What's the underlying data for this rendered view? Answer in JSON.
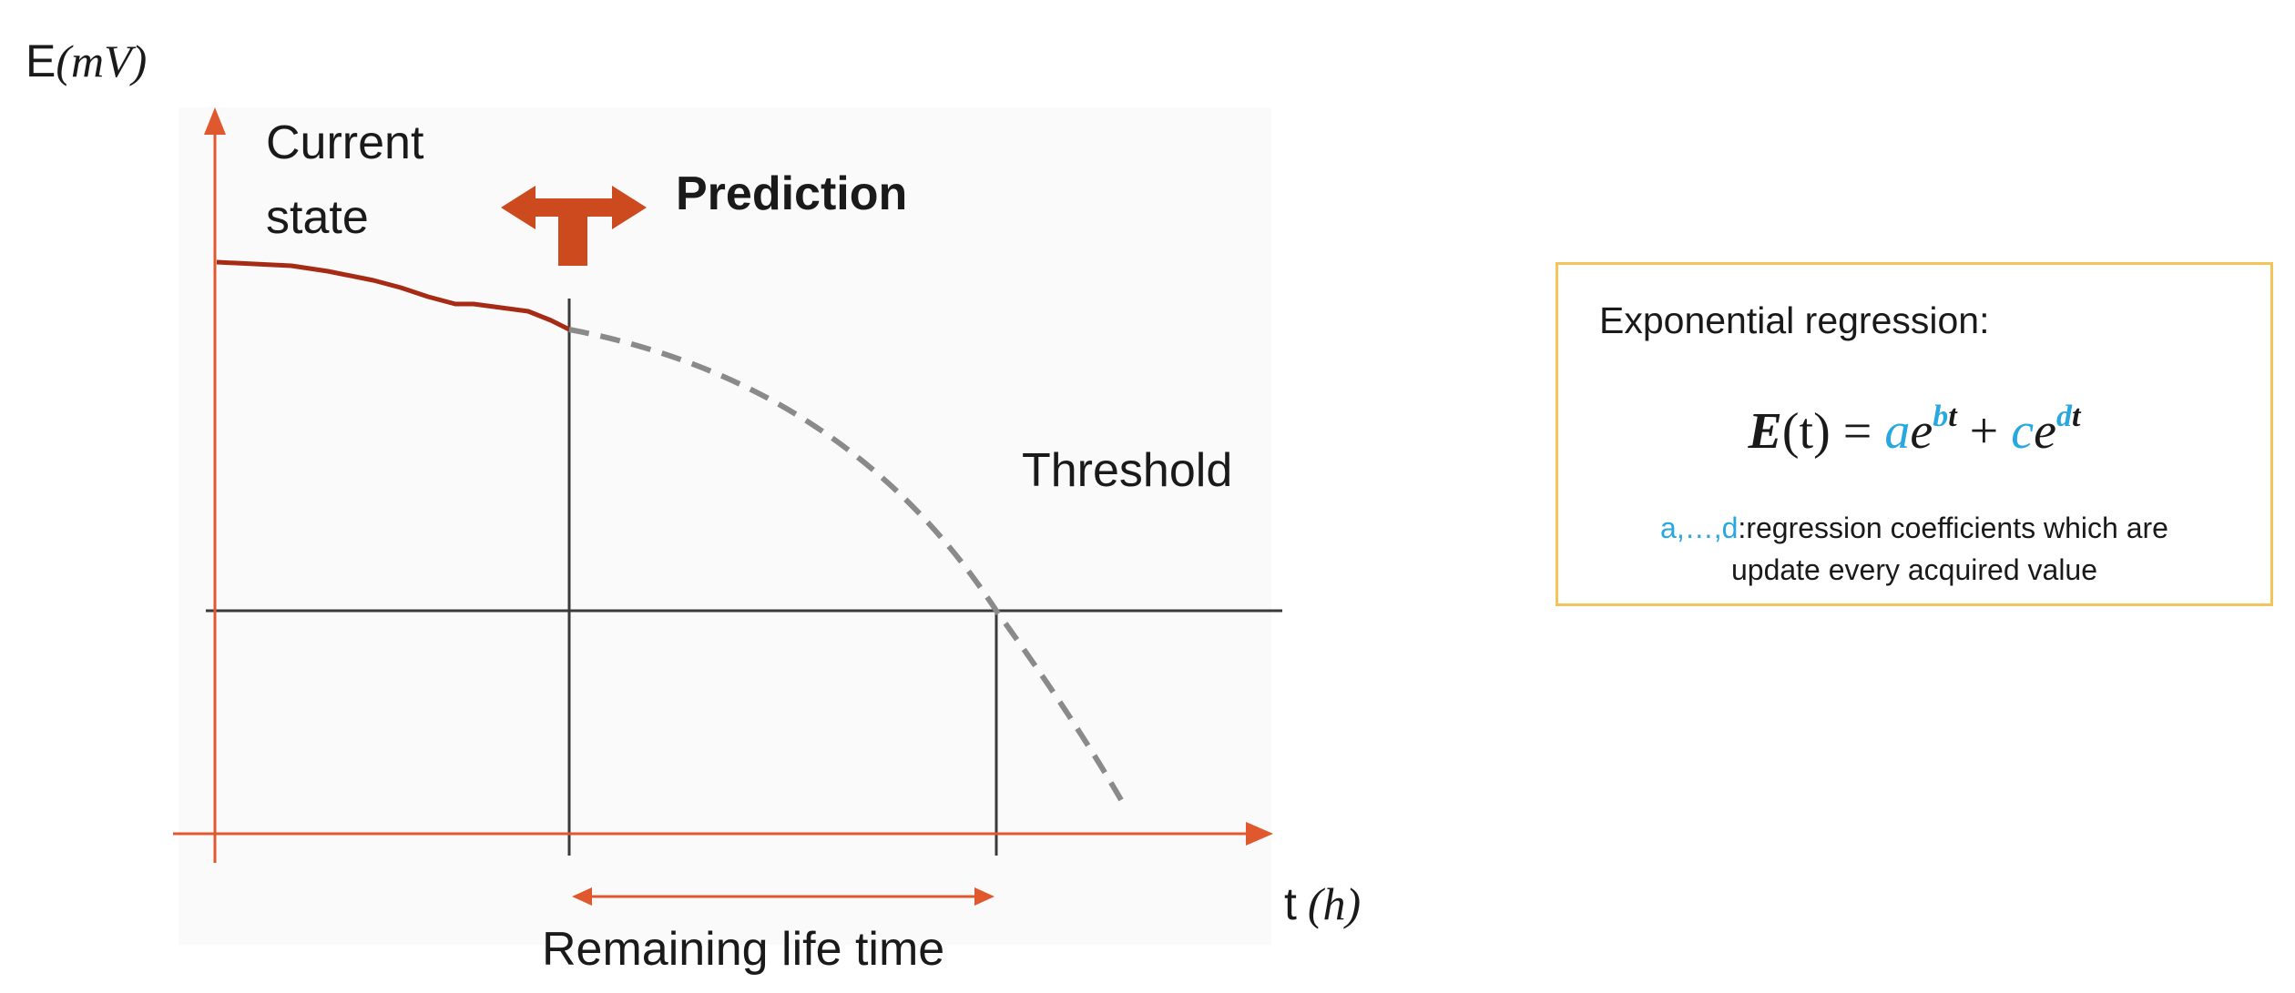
{
  "diagram": {
    "y_axis_label_prefix": "E",
    "y_axis_label_unit": "(mV)",
    "x_axis_label_prefix": "t",
    "x_axis_label_unit": "(h)",
    "current_state_line1": "Current",
    "current_state_line2": "state",
    "prediction_label": "Prediction",
    "threshold_label": "Threshold",
    "remaining_life_label": "Remaining life time",
    "colors": {
      "axis": "#e0582d",
      "measured_curve": "#a62a14",
      "prediction_marker": "#cc4a1e",
      "predicted_curve": "#8a8a8a",
      "guide_lines": "#3a3a3a"
    }
  },
  "formula_box": {
    "title": "Exponential regression:",
    "formula": {
      "lhs": "E",
      "lhs_arg": "(t)",
      "equals": "=",
      "a": "a",
      "e1": "e",
      "b": "b",
      "t1": "t",
      "plus": "+",
      "c": "c",
      "e2": "e",
      "d": "d",
      "t2": "t"
    },
    "note_coefs": "a,…,d",
    "note_line1": ":regression coefficients which are",
    "note_line2": "update every acquired value",
    "border_color": "#f2c45a",
    "coefficient_color": "#29a8e0"
  }
}
